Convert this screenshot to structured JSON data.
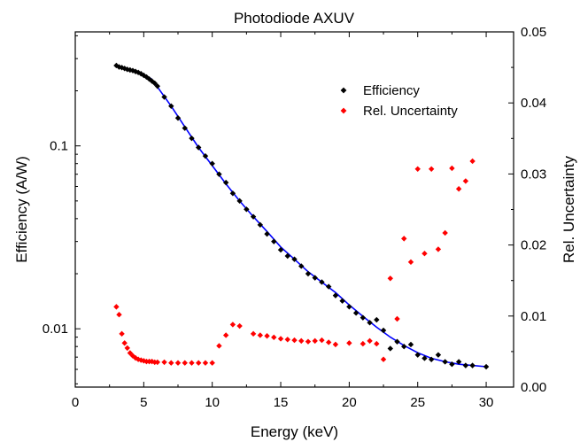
{
  "chart_data": {
    "type": "scatter",
    "title": "Photodiode AXUV",
    "xlabel": "Energy (keV)",
    "ylabel_left": "Efficiency (A/W)",
    "ylabel_right": "Rel. Uncertainty",
    "xlim": [
      0,
      32
    ],
    "xticks": [
      "0",
      "5",
      "10",
      "15",
      "20",
      "25",
      "30"
    ],
    "y_left_scale": "log",
    "y_left_lim": [
      0.0048,
      0.42
    ],
    "y_left_ticks": [
      "0.01",
      "0.1"
    ],
    "y_right_lim": [
      0,
      0.05
    ],
    "y_right_ticks": [
      "0.00",
      "0.01",
      "0.02",
      "0.03",
      "0.04",
      "0.05"
    ],
    "grid": false,
    "legend_position": "top-right",
    "legend": [
      "Efficiency",
      "Rel. Uncertainty"
    ],
    "colors": {
      "efficiency": "#000000",
      "uncertainty": "#ff0000",
      "fit": "#0000ff"
    },
    "series": [
      {
        "name": "Efficiency",
        "axis": "left",
        "marker": "diamond",
        "x": [
          3.0,
          3.2,
          3.4,
          3.6,
          3.8,
          4.0,
          4.2,
          4.4,
          4.6,
          4.8,
          5.0,
          5.2,
          5.4,
          5.6,
          5.8,
          6.0,
          6.5,
          7.0,
          7.5,
          8.0,
          8.5,
          9.0,
          9.5,
          10.0,
          10.5,
          11.0,
          11.5,
          12.0,
          12.5,
          13.0,
          13.5,
          14.0,
          14.5,
          15.0,
          15.5,
          16.0,
          16.5,
          17.0,
          17.5,
          18.0,
          18.5,
          19.0,
          19.5,
          20.0,
          20.5,
          21.0,
          21.5,
          22.0,
          22.5,
          23.0,
          23.5,
          24.0,
          24.5,
          25.0,
          25.5,
          26.0,
          26.5,
          27.0,
          27.5,
          28.0,
          28.5,
          29.0,
          30.0
        ],
        "y": [
          0.275,
          0.27,
          0.268,
          0.265,
          0.262,
          0.26,
          0.258,
          0.255,
          0.252,
          0.248,
          0.243,
          0.238,
          0.232,
          0.226,
          0.22,
          0.212,
          0.185,
          0.165,
          0.142,
          0.125,
          0.11,
          0.098,
          0.088,
          0.08,
          0.07,
          0.063,
          0.055,
          0.05,
          0.045,
          0.041,
          0.037,
          0.033,
          0.03,
          0.027,
          0.025,
          0.024,
          0.022,
          0.02,
          0.019,
          0.018,
          0.017,
          0.0152,
          0.0142,
          0.0132,
          0.0122,
          0.0115,
          0.0108,
          0.0112,
          0.0098,
          0.0078,
          0.0085,
          0.008,
          0.0082,
          0.0072,
          0.0069,
          0.0068,
          0.0072,
          0.0066,
          0.0064,
          0.0066,
          0.0063,
          0.0063,
          0.0062
        ]
      },
      {
        "name": "Rel. Uncertainty",
        "axis": "right",
        "marker": "diamond",
        "x": [
          3.0,
          3.2,
          3.4,
          3.6,
          3.8,
          4.0,
          4.2,
          4.4,
          4.6,
          4.8,
          5.0,
          5.2,
          5.4,
          5.6,
          5.8,
          6.0,
          6.5,
          7.0,
          7.5,
          8.0,
          8.5,
          9.0,
          9.5,
          10.0,
          10.5,
          11.0,
          11.5,
          12.0,
          13.0,
          13.5,
          14.0,
          14.5,
          15.0,
          15.5,
          16.0,
          16.5,
          17.0,
          17.5,
          18.0,
          18.5,
          19.0,
          20.0,
          21.0,
          21.5,
          22.0,
          22.5,
          23.0,
          23.5,
          24.0,
          24.5,
          25.0,
          25.5,
          26.0,
          26.5,
          27.0,
          27.5,
          28.0,
          28.5,
          29.0
        ],
        "y": [
          0.0113,
          0.0102,
          0.0075,
          0.0062,
          0.0055,
          0.0048,
          0.0044,
          0.0041,
          0.0039,
          0.0038,
          0.0037,
          0.0036,
          0.0036,
          0.0036,
          0.0035,
          0.0035,
          0.0035,
          0.0034,
          0.0034,
          0.0034,
          0.0034,
          0.0034,
          0.0034,
          0.0034,
          0.0058,
          0.0073,
          0.0088,
          0.0086,
          0.0075,
          0.0073,
          0.0072,
          0.007,
          0.0068,
          0.0067,
          0.0066,
          0.0065,
          0.0064,
          0.0065,
          0.0066,
          0.0063,
          0.006,
          0.0062,
          0.0061,
          0.0065,
          0.0061,
          0.0039,
          0.0153,
          0.0096,
          0.0209,
          0.0176,
          0.0307,
          0.0188,
          0.0307,
          0.0194,
          0.0217,
          0.0308,
          0.0279,
          0.029,
          0.0318
        ]
      }
    ],
    "fit": {
      "axis": "left",
      "x": [
        5.5,
        6,
        7,
        8,
        9,
        10,
        11,
        12,
        13,
        14,
        15,
        16,
        17,
        18,
        19,
        20,
        21,
        22,
        23,
        24,
        25,
        26,
        27,
        28,
        29,
        30
      ],
      "y": [
        0.235,
        0.21,
        0.165,
        0.127,
        0.098,
        0.078,
        0.062,
        0.05,
        0.041,
        0.034,
        0.028,
        0.024,
        0.0205,
        0.018,
        0.0158,
        0.0135,
        0.0117,
        0.0102,
        0.009,
        0.0081,
        0.0074,
        0.0069,
        0.0066,
        0.0064,
        0.0063,
        0.0062
      ]
    }
  }
}
